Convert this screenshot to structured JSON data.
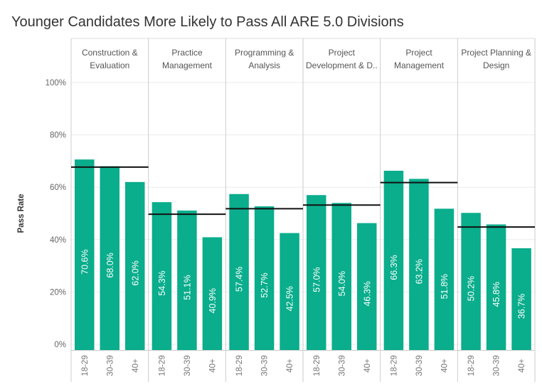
{
  "title": "Younger Candidates More Likely to Pass All ARE 5.0 Divisions",
  "chart_data": {
    "type": "bar",
    "title": "Younger Candidates More Likely to Pass All ARE 5.0 Divisions",
    "ylabel": "Pass Rate",
    "ylim": [
      0,
      100
    ],
    "yticks": [
      "0%",
      "20%",
      "40%",
      "60%",
      "80%",
      "100%"
    ],
    "ytick_values": [
      0,
      20,
      40,
      60,
      80,
      100
    ],
    "categories": [
      "18-29",
      "30-39",
      "40+"
    ],
    "grid": true,
    "bar_color": "#0aad8c",
    "reference_line_color": "#111111",
    "panels": [
      {
        "name_lines": [
          "Construction &",
          "Evaluation"
        ],
        "values": [
          70.6,
          68.0,
          62.0
        ],
        "labels": [
          "70.6%",
          "68.0%",
          "62.0%"
        ],
        "reference": 67.7
      },
      {
        "name_lines": [
          "Practice",
          "Management"
        ],
        "values": [
          54.3,
          51.1,
          40.9
        ],
        "labels": [
          "54.3%",
          "51.1%",
          "40.9%"
        ],
        "reference": 49.7
      },
      {
        "name_lines": [
          "Programming &",
          "Analysis"
        ],
        "values": [
          57.4,
          52.7,
          42.5
        ],
        "labels": [
          "57.4%",
          "52.7%",
          "42.5%"
        ],
        "reference": 51.8
      },
      {
        "name_lines": [
          "Project",
          "Development & D.."
        ],
        "values": [
          57.0,
          54.0,
          46.3
        ],
        "labels": [
          "57.0%",
          "54.0%",
          "46.3%"
        ],
        "reference": 53.2
      },
      {
        "name_lines": [
          "Project",
          "Management"
        ],
        "values": [
          66.3,
          63.2,
          51.8
        ],
        "labels": [
          "66.3%",
          "63.2%",
          "51.8%"
        ],
        "reference": 61.8
      },
      {
        "name_lines": [
          "Project Planning &",
          "Design"
        ],
        "values": [
          50.2,
          45.8,
          36.7
        ],
        "labels": [
          "50.2%",
          "45.8%",
          "36.7%"
        ],
        "reference": 44.8
      }
    ]
  }
}
